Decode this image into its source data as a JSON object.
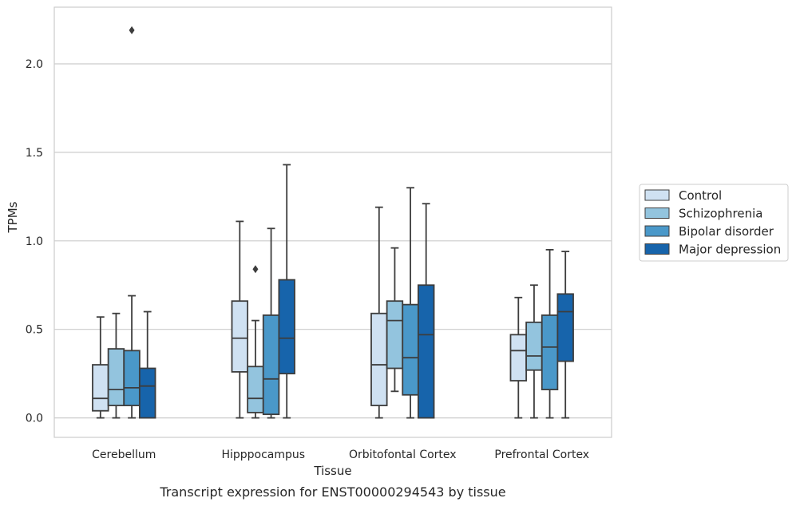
{
  "caption": "Transcript expression for ENST00000294543 by tissue",
  "chart_data": {
    "type": "boxplot",
    "xlabel": "Tissue",
    "ylabel": "TPMs",
    "ylim": [
      -0.11,
      2.32
    ],
    "yticks": [
      "0.0",
      "0.5",
      "1.0",
      "1.5",
      "2.0"
    ],
    "grid": "horizontal",
    "legend_position": "right",
    "categories": [
      "Cerebellum",
      "Hipppocampus",
      "Orbitofontal Cortex",
      "Prefrontal Cortex"
    ],
    "series": [
      {
        "name": "Control",
        "color": "#cfe1f2",
        "boxes": [
          {
            "min": 0.0,
            "q1": 0.04,
            "median": 0.11,
            "q3": 0.3,
            "max": 0.57,
            "outliers": []
          },
          {
            "min": 0.0,
            "q1": 0.26,
            "median": 0.45,
            "q3": 0.66,
            "max": 1.11,
            "outliers": []
          },
          {
            "min": 0.0,
            "q1": 0.07,
            "median": 0.3,
            "q3": 0.59,
            "max": 1.19,
            "outliers": []
          },
          {
            "min": 0.0,
            "q1": 0.21,
            "median": 0.38,
            "q3": 0.47,
            "max": 0.68,
            "outliers": []
          }
        ]
      },
      {
        "name": "Schizophrenia",
        "color": "#93c4de",
        "boxes": [
          {
            "min": 0.0,
            "q1": 0.07,
            "median": 0.16,
            "q3": 0.39,
            "max": 0.59,
            "outliers": []
          },
          {
            "min": 0.0,
            "q1": 0.03,
            "median": 0.11,
            "q3": 0.29,
            "max": 0.55,
            "outliers": [
              0.84
            ]
          },
          {
            "min": 0.15,
            "q1": 0.28,
            "median": 0.55,
            "q3": 0.66,
            "max": 0.96,
            "outliers": []
          },
          {
            "min": 0.0,
            "q1": 0.27,
            "median": 0.35,
            "q3": 0.54,
            "max": 0.75,
            "outliers": []
          }
        ]
      },
      {
        "name": "Bipolar disorder",
        "color": "#4a98c9",
        "boxes": [
          {
            "min": 0.0,
            "q1": 0.07,
            "median": 0.17,
            "q3": 0.38,
            "max": 0.69,
            "outliers": [
              2.19
            ]
          },
          {
            "min": 0.0,
            "q1": 0.02,
            "median": 0.22,
            "q3": 0.58,
            "max": 1.07,
            "outliers": []
          },
          {
            "min": 0.0,
            "q1": 0.13,
            "median": 0.34,
            "q3": 0.64,
            "max": 1.3,
            "outliers": []
          },
          {
            "min": 0.0,
            "q1": 0.16,
            "median": 0.4,
            "q3": 0.58,
            "max": 0.95,
            "outliers": []
          }
        ]
      },
      {
        "name": "Major depression",
        "color": "#1764ab",
        "boxes": [
          {
            "min": 0.0,
            "q1": 0.0,
            "median": 0.18,
            "q3": 0.28,
            "max": 0.6,
            "outliers": []
          },
          {
            "min": 0.0,
            "q1": 0.25,
            "median": 0.45,
            "q3": 0.78,
            "max": 1.43,
            "outliers": []
          },
          {
            "min": 0.0,
            "q1": 0.0,
            "median": 0.47,
            "q3": 0.75,
            "max": 1.21,
            "outliers": []
          },
          {
            "min": 0.0,
            "q1": 0.32,
            "median": 0.6,
            "q3": 0.7,
            "max": 0.94,
            "outliers": []
          }
        ]
      }
    ]
  }
}
